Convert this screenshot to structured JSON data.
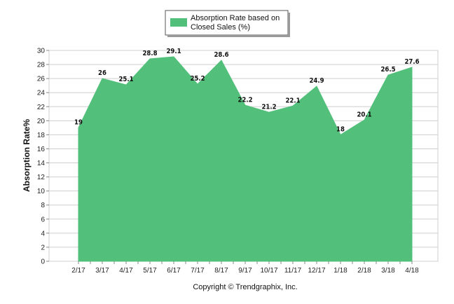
{
  "chart_data": {
    "type": "area",
    "categories": [
      "2/17",
      "3/17",
      "4/17",
      "5/17",
      "6/17",
      "7/17",
      "8/17",
      "9/17",
      "10/17",
      "11/17",
      "12/17",
      "1/18",
      "2/18",
      "3/18",
      "4/18"
    ],
    "series": [
      {
        "name": "Absorption Rate based on Closed Sales (%)",
        "values": [
          19,
          26,
          25.1,
          28.8,
          29.1,
          25.2,
          28.6,
          22.2,
          21.2,
          22.1,
          24.9,
          18,
          20.1,
          26.5,
          27.6
        ],
        "labels": [
          "19",
          "26",
          "25.1",
          "28.8",
          "29.1",
          "25.2",
          "28.6",
          "22.2",
          "21.2",
          "22.1",
          "24.9",
          "18",
          "20.1",
          "26.5",
          "27.6"
        ],
        "color": "#52c07a"
      }
    ],
    "legend_lines": [
      "Absorption Rate based on",
      "Closed Sales (%)"
    ],
    "ylabel": "Absorption Rate%",
    "xlabel": "",
    "ylim": [
      0,
      30
    ],
    "yticks": [
      "0",
      "2",
      "4",
      "6",
      "8",
      "10",
      "12",
      "14",
      "16",
      "18",
      "20",
      "22",
      "24",
      "26",
      "28",
      "30"
    ],
    "grid": true,
    "legend_position": "top-center",
    "grid_color": "#cfcfcf"
  },
  "footer": {
    "copyright": "Copyright © Trendgraphix, Inc."
  }
}
